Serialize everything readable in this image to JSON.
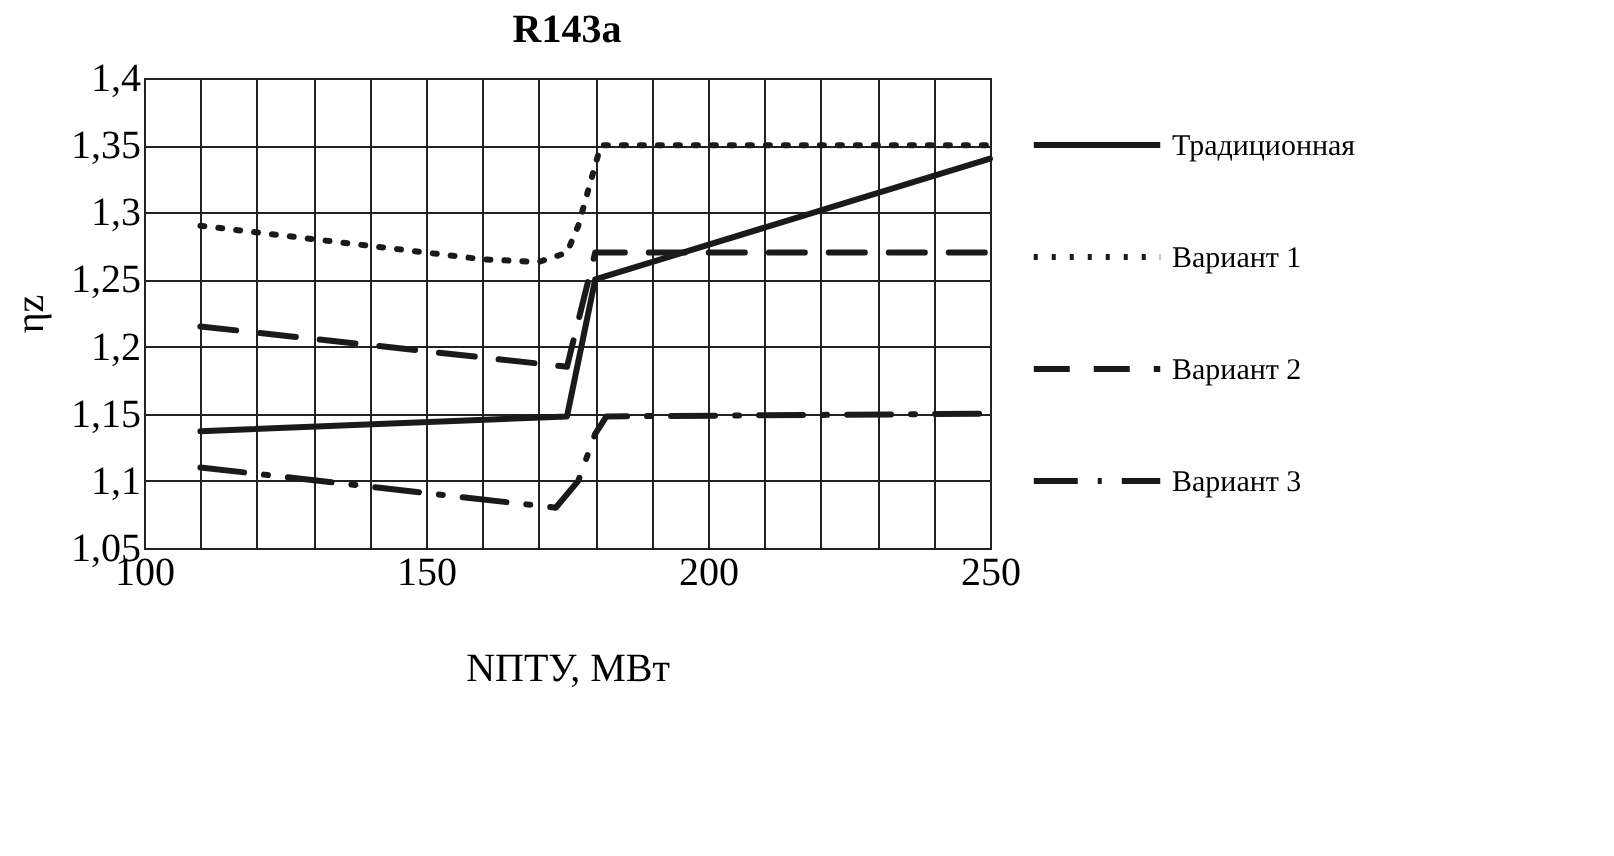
{
  "chart_data": {
    "type": "line",
    "title": "R143a",
    "xlabel": "NПТУ, МВт",
    "ylabel": "ηz",
    "xlim": [
      100,
      250
    ],
    "ylim": [
      1.05,
      1.4
    ],
    "xticks": [
      100,
      {
        "value": 110,
        "label": null
      },
      {
        "value": 120,
        "label": null
      },
      {
        "value": 130,
        "label": null
      },
      {
        "value": 140,
        "label": null
      },
      150,
      {
        "value": 160,
        "label": null
      },
      {
        "value": 170,
        "label": null
      },
      {
        "value": 180,
        "label": null
      },
      {
        "value": 190,
        "label": null
      },
      200,
      {
        "value": 210,
        "label": null
      },
      {
        "value": 220,
        "label": null
      },
      {
        "value": 230,
        "label": null
      },
      {
        "value": 240,
        "label": null
      },
      250
    ],
    "yticks": [
      {
        "value": 1.05,
        "label": "1,05"
      },
      {
        "value": 1.1,
        "label": "1,1"
      },
      {
        "value": 1.15,
        "label": "1,15"
      },
      {
        "value": 1.2,
        "label": "1,2"
      },
      {
        "value": 1.25,
        "label": "1,25"
      },
      {
        "value": 1.3,
        "label": "1,3"
      },
      {
        "value": 1.35,
        "label": "1,35"
      },
      {
        "value": 1.4,
        "label": "1,4"
      }
    ],
    "grid": true,
    "legend": "right",
    "series": [
      {
        "name": "Традиционная",
        "color": "#1a1a1a",
        "line_style": "solid",
        "x": [
          110,
          175,
          180,
          250
        ],
        "values": [
          1.137,
          1.148,
          1.25,
          1.34
        ]
      },
      {
        "name": "Вариант 1",
        "color": "#1a1a1a",
        "line_style": "dotted",
        "x": [
          110,
          120,
          130,
          140,
          150,
          160,
          170,
          175,
          177,
          179,
          181,
          250
        ],
        "values": [
          1.29,
          1.285,
          1.28,
          1.275,
          1.27,
          1.265,
          1.263,
          1.27,
          1.29,
          1.32,
          1.35,
          1.35
        ]
      },
      {
        "name": "Вариант 2",
        "color": "#1a1a1a",
        "line_style": "dashed",
        "x": [
          110,
          175,
          180,
          250
        ],
        "values": [
          1.215,
          1.185,
          1.27,
          1.27
        ]
      },
      {
        "name": "Вариант 3",
        "color": "#1a1a1a",
        "line_style": "dashdot",
        "x": [
          110,
          173,
          177,
          180,
          182,
          250
        ],
        "values": [
          1.11,
          1.08,
          1.1,
          1.135,
          1.148,
          1.15
        ]
      }
    ]
  }
}
